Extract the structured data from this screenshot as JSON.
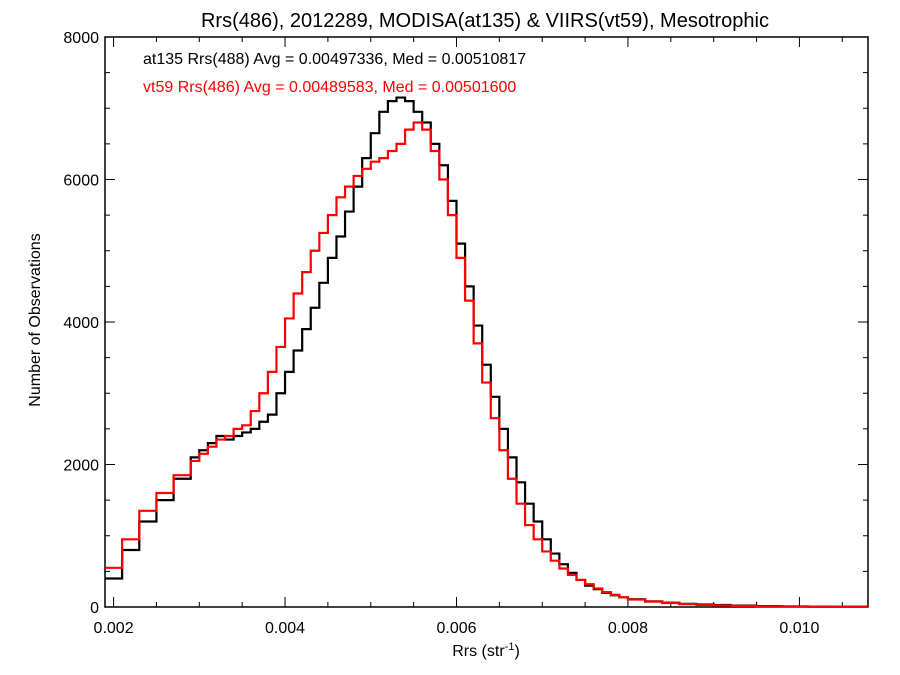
{
  "chart_data": {
    "type": "line",
    "step": true,
    "title": "Rrs(486), 2012289, MODISA(at135) & VIIRS(vt59), Mesotrophic",
    "xlabel": {
      "base": "Rrs (str",
      "superscript": "-1",
      "suffix": ")"
    },
    "ylabel": "Number of Observations",
    "xlim": [
      0.0019,
      0.0108
    ],
    "ylim": [
      0,
      8000
    ],
    "x_ticks": [
      0.002,
      0.004,
      0.006,
      0.008,
      0.01
    ],
    "x_tick_labels": [
      "0.002",
      "0.004",
      "0.006",
      "0.008",
      "0.010"
    ],
    "y_ticks": [
      0,
      2000,
      4000,
      6000,
      8000
    ],
    "y_tick_labels": [
      "0",
      "2000",
      "4000",
      "6000",
      "8000"
    ],
    "grid": false,
    "legend_position": "top-left",
    "series": [
      {
        "name": "at135 Rrs(488) Avg = 0.00497336, Med = 0.00510817",
        "color": "#000000",
        "x": [
          0.0019,
          0.0021,
          0.0023,
          0.0025,
          0.0027,
          0.0029,
          0.003,
          0.0031,
          0.0032,
          0.0033,
          0.0034,
          0.0035,
          0.0036,
          0.0037,
          0.0038,
          0.0039,
          0.004,
          0.0041,
          0.0042,
          0.0043,
          0.0044,
          0.0045,
          0.0046,
          0.0047,
          0.0048,
          0.0049,
          0.005,
          0.0051,
          0.0052,
          0.0053,
          0.0054,
          0.0055,
          0.0056,
          0.0057,
          0.0058,
          0.0059,
          0.006,
          0.0061,
          0.0062,
          0.0063,
          0.0064,
          0.0065,
          0.0066,
          0.0067,
          0.0068,
          0.0069,
          0.007,
          0.0071,
          0.0072,
          0.0073,
          0.0074,
          0.0075,
          0.0076,
          0.0077,
          0.0078,
          0.0079,
          0.008,
          0.0082,
          0.0084,
          0.0086,
          0.0088,
          0.009,
          0.0092,
          0.0095,
          0.0098,
          0.0101,
          0.0104,
          0.0108
        ],
        "y": [
          400,
          800,
          1200,
          1500,
          1800,
          2100,
          2200,
          2300,
          2400,
          2350,
          2400,
          2450,
          2500,
          2600,
          2700,
          3000,
          3300,
          3600,
          3900,
          4200,
          4550,
          4900,
          5200,
          5550,
          5900,
          6300,
          6650,
          6950,
          7100,
          7150,
          7100,
          6950,
          6800,
          6500,
          6200,
          5700,
          5100,
          4500,
          3950,
          3400,
          2950,
          2500,
          2100,
          1750,
          1450,
          1200,
          950,
          750,
          600,
          480,
          380,
          300,
          250,
          200,
          165,
          135,
          110,
          80,
          60,
          45,
          35,
          28,
          20,
          12,
          8,
          5,
          3,
          2
        ]
      },
      {
        "name": "vt59 Rrs(486) Avg = 0.00489583, Med = 0.00501600",
        "color": "#ff0000",
        "x": [
          0.0019,
          0.0021,
          0.0023,
          0.0025,
          0.0027,
          0.0029,
          0.003,
          0.0031,
          0.0032,
          0.0033,
          0.0034,
          0.0035,
          0.0036,
          0.0037,
          0.0038,
          0.0039,
          0.004,
          0.0041,
          0.0042,
          0.0043,
          0.0044,
          0.0045,
          0.0046,
          0.0047,
          0.0048,
          0.0049,
          0.005,
          0.0051,
          0.0052,
          0.0053,
          0.0054,
          0.0055,
          0.0056,
          0.0057,
          0.0058,
          0.0059,
          0.006,
          0.0061,
          0.0062,
          0.0063,
          0.0064,
          0.0065,
          0.0066,
          0.0067,
          0.0068,
          0.0069,
          0.007,
          0.0071,
          0.0072,
          0.0073,
          0.0074,
          0.0075,
          0.0076,
          0.0077,
          0.0078,
          0.0079,
          0.008,
          0.0082,
          0.0084,
          0.0086,
          0.0088,
          0.009,
          0.0092,
          0.0095,
          0.0098,
          0.0101,
          0.0104,
          0.0108
        ],
        "y": [
          550,
          950,
          1350,
          1600,
          1850,
          2050,
          2150,
          2250,
          2350,
          2400,
          2500,
          2550,
          2750,
          3000,
          3300,
          3650,
          4050,
          4400,
          4700,
          5000,
          5250,
          5500,
          5750,
          5900,
          6050,
          6150,
          6250,
          6300,
          6400,
          6500,
          6700,
          6800,
          6700,
          6400,
          6000,
          5500,
          4900,
          4300,
          3700,
          3150,
          2650,
          2200,
          1800,
          1450,
          1150,
          950,
          780,
          650,
          540,
          450,
          380,
          320,
          260,
          210,
          170,
          135,
          105,
          75,
          55,
          40,
          30,
          22,
          15,
          10,
          7,
          4,
          2,
          1
        ]
      }
    ]
  }
}
